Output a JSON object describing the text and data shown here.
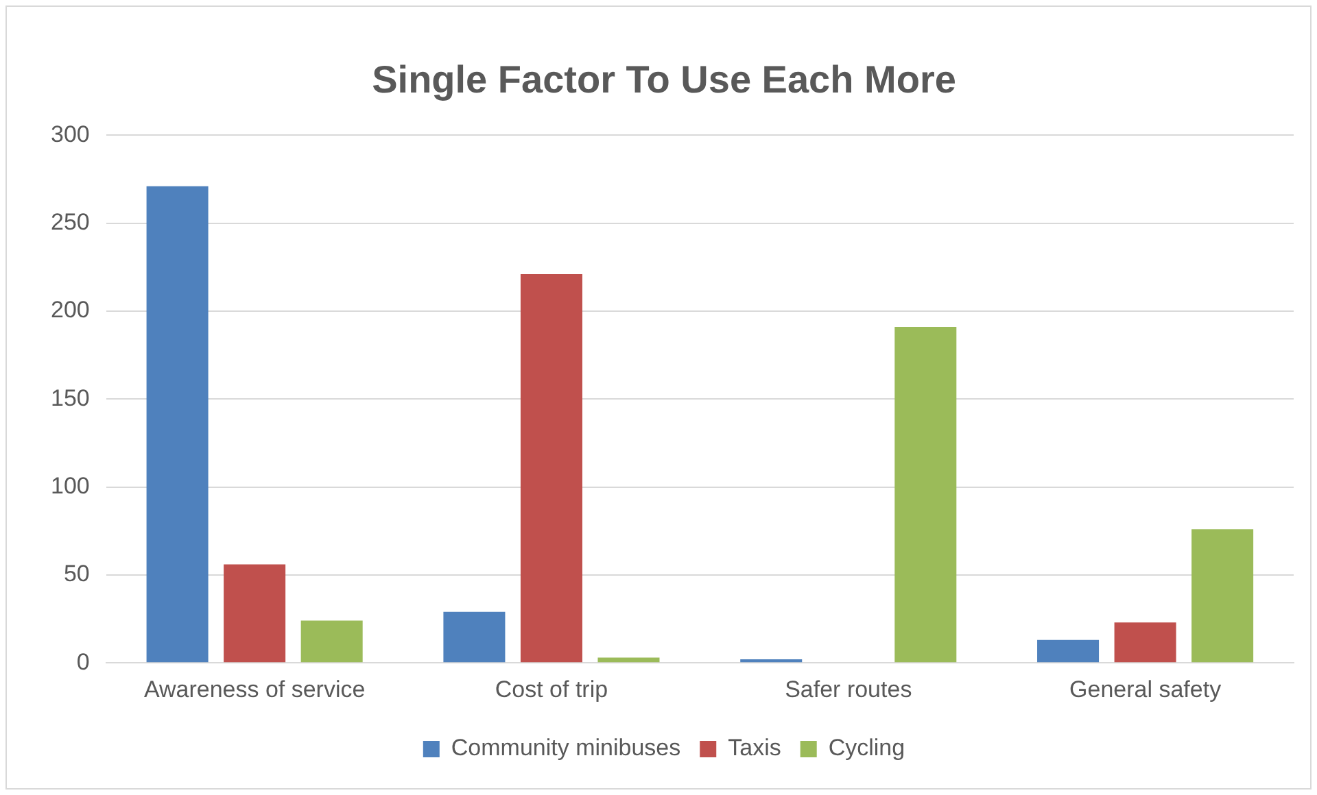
{
  "chart_data": {
    "type": "bar",
    "title": "Single Factor To Use Each More",
    "categories": [
      "Awareness of service",
      "Cost of trip",
      "Safer routes",
      "General safety"
    ],
    "series": [
      {
        "name": "Community minibuses",
        "color": "#4f81bd",
        "values": [
          271,
          29,
          2,
          13
        ]
      },
      {
        "name": "Taxis",
        "color": "#c0504d",
        "values": [
          56,
          221,
          0,
          23
        ]
      },
      {
        "name": "Cycling",
        "color": "#9bbb59",
        "values": [
          24,
          3,
          191,
          76
        ]
      }
    ],
    "ylim": [
      0,
      300
    ],
    "yticks": [
      0,
      50,
      100,
      150,
      200,
      250,
      300
    ],
    "grid": "y",
    "legend": "bottom"
  }
}
